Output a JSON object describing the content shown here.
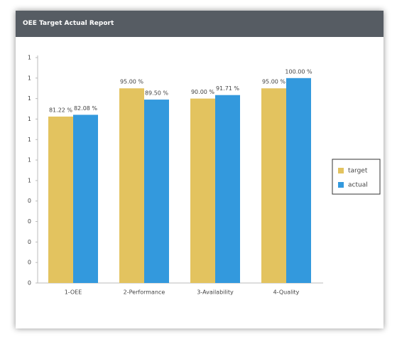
{
  "chart_data": {
    "type": "bar",
    "title": "OEE Target Actual Report",
    "categories": [
      "1-OEE",
      "2-Performance",
      "3-Availability",
      "4-Quality"
    ],
    "series": [
      {
        "name": "target",
        "color": "#e3c35f",
        "values": [
          0.8122,
          0.95,
          0.9,
          0.95
        ],
        "value_labels": [
          "81.22 %",
          "95.00 %",
          "90.00 %",
          "95.00 %"
        ]
      },
      {
        "name": "actual",
        "color": "#3399dd",
        "values": [
          0.8208,
          0.895,
          0.9171,
          1.0
        ],
        "value_labels": [
          "82.08 %",
          "89.50 %",
          "91.71 %",
          "100.00 %"
        ]
      }
    ],
    "ylim": [
      0,
      1.1
    ],
    "yticks": [
      0,
      {
        "value": 0.1,
        "label": "0"
      },
      {
        "value": 0.2,
        "label": "0"
      },
      {
        "value": 0.3,
        "label": "0"
      },
      {
        "value": 0.4,
        "label": "0"
      },
      {
        "value": 0.5,
        "label": "1"
      },
      {
        "value": 0.6,
        "label": "1"
      },
      {
        "value": 0.7,
        "label": "1"
      },
      {
        "value": 0.8,
        "label": "1"
      },
      {
        "value": 0.9,
        "label": "1"
      },
      {
        "value": 1.0,
        "label": "1"
      },
      {
        "value": 1.1,
        "label": "1"
      }
    ],
    "grid": false,
    "legend": "right"
  }
}
